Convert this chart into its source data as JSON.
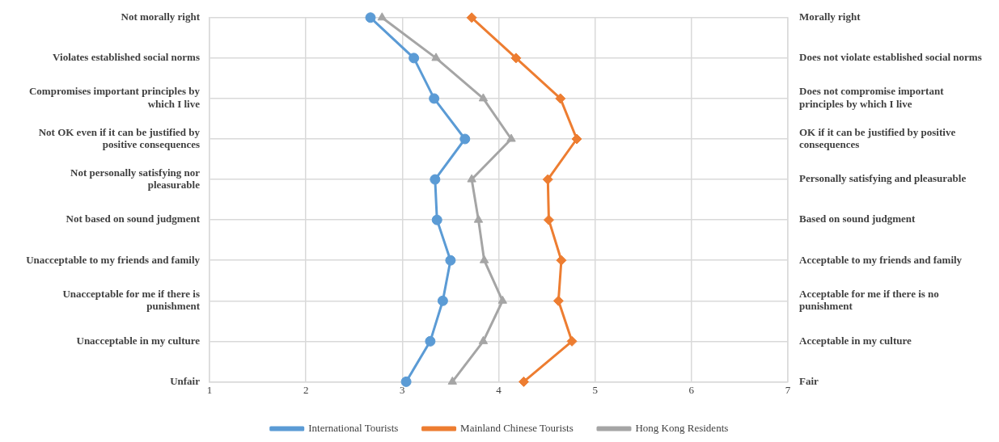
{
  "chart_data": {
    "type": "line",
    "orientation": "horizontal",
    "categories": [
      "Not morally right",
      "Violates established social norms",
      "Compromises important principles by which I live",
      "Not OK even if it can be justified by positive consequences",
      "Not personally satisfying nor pleasurable",
      "Not based on sound judgment",
      "Unacceptable to my friends and family",
      "Unacceptable for me if there is punishment",
      "Unacceptable in my culture",
      "Unfair"
    ],
    "y2_categories": [
      "Morally right",
      "Does not violate established social norms",
      "Does not compromise important principles by which I live",
      "OK if it can be justified by positive consequences",
      "Personally satisfying and pleasurable",
      "Based on sound judgment",
      "Acceptable to my friends and family",
      "Acceptable for me if there is no punishment",
      "Acceptable in my culture",
      "Fair"
    ],
    "series": [
      {
        "name": "International Tourists",
        "color": "#5b9bd5",
        "marker": "circle",
        "values": [
          2.67,
          3.12,
          3.33,
          3.65,
          3.34,
          3.36,
          3.5,
          3.42,
          3.29,
          3.04
        ]
      },
      {
        "name": "Mainland Chinese Tourists",
        "color": "#ed7d31",
        "marker": "diamond",
        "values": [
          3.72,
          4.18,
          4.64,
          4.81,
          4.51,
          4.52,
          4.65,
          4.62,
          4.76,
          4.26
        ]
      },
      {
        "name": "Hong Kong Residents",
        "color": "#a5a5a5",
        "marker": "triangle",
        "values": [
          2.79,
          3.35,
          3.84,
          4.13,
          3.72,
          3.79,
          3.85,
          4.04,
          3.84,
          3.52
        ]
      }
    ],
    "xlim": [
      1,
      7
    ],
    "xticks": [
      1,
      2,
      3,
      4,
      5,
      6,
      7
    ],
    "grid": true,
    "legend": "bottom"
  }
}
